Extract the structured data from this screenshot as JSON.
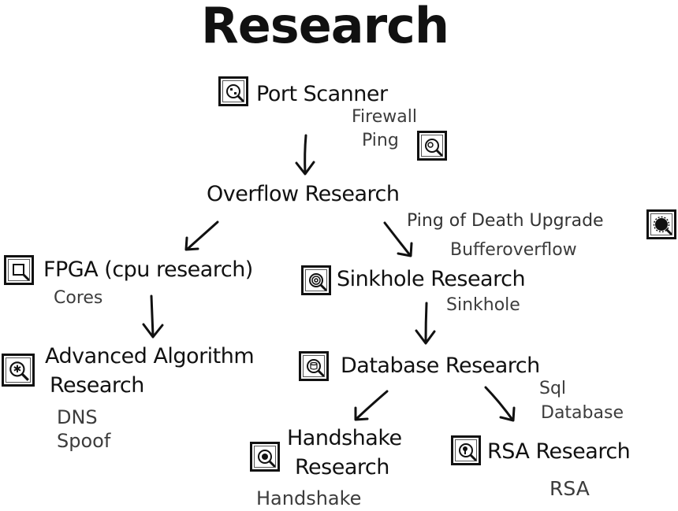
{
  "title": "Research",
  "nodes": {
    "port_scanner": {
      "label": "Port Scanner",
      "icon": "network-magnifier-icon",
      "items": [
        "Firewall",
        "Ping"
      ]
    },
    "overflow": {
      "label": "Overflow Research"
    },
    "ping_of_death": {
      "label": "Ping of Death Upgrade",
      "items": [
        "Bufferoverflow"
      ],
      "icon": "burst-magnifier-icon"
    },
    "fpga": {
      "label": "FPGA (cpu research)",
      "items": [
        "Cores"
      ],
      "icon": "chip-magnifier-icon"
    },
    "sinkhole": {
      "label": "Sinkhole Research",
      "items": [
        "Sinkhole"
      ],
      "icon": "spiral-magnifier-icon"
    },
    "advanced_algorithm": {
      "label_line1": "Advanced Algorithm",
      "label_line2": "Research",
      "items": [
        "DNS",
        "Spoof"
      ],
      "icon": "gear-magnifier-icon"
    },
    "database": {
      "label": "Database Research",
      "items": [
        "Sql",
        "Database"
      ],
      "icon": "database-magnifier-icon"
    },
    "handshake": {
      "label_line1": "Handshake",
      "label_line2": "Research",
      "items": [
        "Handshake"
      ],
      "icon": "handshake-magnifier-icon"
    },
    "rsa": {
      "label": "RSA Research",
      "items": [
        "RSA"
      ],
      "icon": "key-magnifier-icon"
    }
  },
  "ping_icon": "ping-magnifier-icon"
}
